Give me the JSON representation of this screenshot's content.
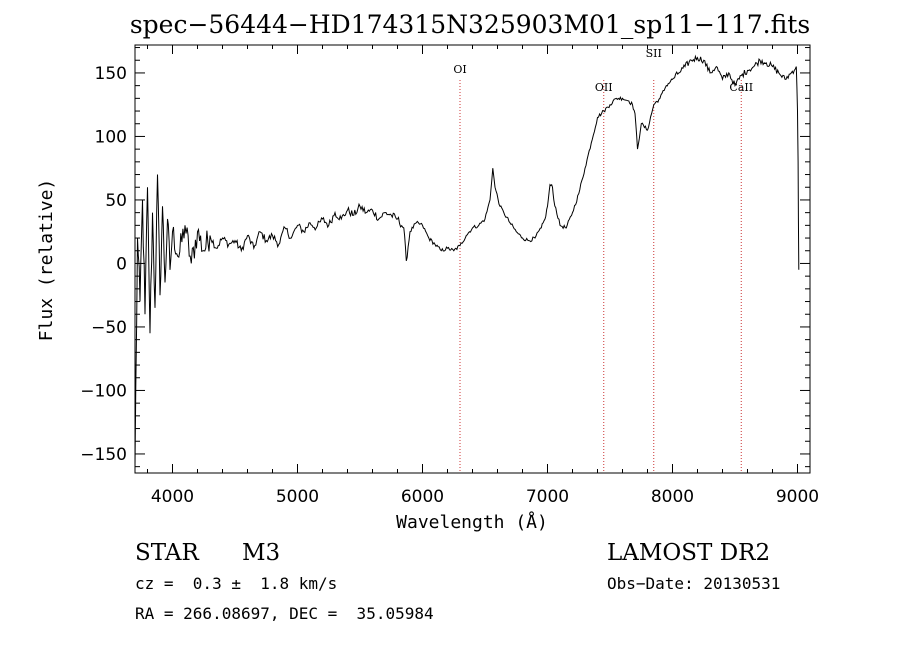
{
  "chart_data": {
    "type": "line",
    "title": "spec−56444−HD174315N325903M01_sp11−117.fits",
    "xlabel": "Wavelength (Å)",
    "ylabel": "Flux (relative)",
    "xlim": [
      3700,
      9100
    ],
    "ylim": [
      -165,
      172
    ],
    "x_ticks": [
      4000,
      5000,
      6000,
      7000,
      8000,
      9000
    ],
    "x_tick_labels": [
      "4000",
      "5000",
      "6000",
      "7000",
      "8000",
      "9000"
    ],
    "y_ticks": [
      -150,
      -100,
      -50,
      0,
      50,
      100,
      150
    ],
    "y_tick_labels": [
      "−150",
      "−100",
      "−50",
      "0",
      "50",
      "100",
      "150"
    ],
    "grid": false,
    "series": [
      {
        "color": "#000000",
        "x": [
          3700,
          3720,
          3740,
          3760,
          3780,
          3800,
          3820,
          3840,
          3860,
          3880,
          3900,
          3920,
          3940,
          3960,
          3980,
          4000,
          4050,
          4100,
          4150,
          4200,
          4250,
          4300,
          4350,
          4400,
          4450,
          4500,
          4550,
          4600,
          4650,
          4700,
          4750,
          4800,
          4850,
          4900,
          4950,
          5000,
          5050,
          5100,
          5150,
          5200,
          5250,
          5300,
          5350,
          5400,
          5450,
          5500,
          5550,
          5600,
          5650,
          5700,
          5750,
          5800,
          5850,
          5870,
          5900,
          5950,
          6000,
          6050,
          6100,
          6150,
          6200,
          6250,
          6300,
          6350,
          6400,
          6450,
          6500,
          6540,
          6562,
          6580,
          6620,
          6650,
          6700,
          6750,
          6800,
          6850,
          6900,
          6950,
          6980,
          7000,
          7020,
          7040,
          7050,
          7100,
          7150,
          7200,
          7250,
          7300,
          7350,
          7400,
          7450,
          7500,
          7550,
          7600,
          7650,
          7680,
          7700,
          7720,
          7750,
          7800,
          7850,
          7900,
          7950,
          8000,
          8050,
          8100,
          8150,
          8200,
          8250,
          8300,
          8350,
          8400,
          8450,
          8500,
          8550,
          8600,
          8650,
          8700,
          8750,
          8800,
          8850,
          8900,
          8950,
          8990,
          9000,
          9005,
          9010
        ],
        "values": [
          -160,
          20,
          -30,
          50,
          -40,
          60,
          -55,
          40,
          -35,
          70,
          -25,
          45,
          -15,
          35,
          -5,
          25,
          5,
          30,
          0,
          25,
          10,
          22,
          12,
          20,
          15,
          18,
          10,
          22,
          12,
          25,
          18,
          22,
          15,
          28,
          20,
          30,
          25,
          32,
          28,
          35,
          30,
          40,
          35,
          42,
          38,
          45,
          40,
          42,
          35,
          40,
          38,
          35,
          28,
          2,
          25,
          32,
          30,
          20,
          15,
          10,
          12,
          10,
          14,
          22,
          28,
          30,
          35,
          50,
          75,
          60,
          45,
          40,
          32,
          25,
          20,
          18,
          20,
          28,
          35,
          45,
          62,
          60,
          50,
          30,
          28,
          40,
          55,
          75,
          95,
          115,
          120,
          125,
          130,
          130,
          128,
          125,
          118,
          90,
          110,
          105,
          125,
          130,
          140,
          145,
          150,
          155,
          160,
          162,
          160,
          150,
          155,
          145,
          150,
          140,
          148,
          152,
          155,
          160,
          158,
          155,
          150,
          145,
          150,
          155,
          120,
          80,
          -5
        ]
      }
    ],
    "annotations": [
      {
        "label": "OI",
        "x": 6300
      },
      {
        "label": "OII",
        "x": 7450
      },
      {
        "label": "SII",
        "x": 7850
      },
      {
        "label": "CaII",
        "x": 8550
      }
    ]
  },
  "footer": {
    "object_class": "STAR",
    "subclass": "M3",
    "survey": "LAMOST DR2",
    "redshift": "cz =  0.3 ±  1.8 km/s",
    "obs_date": "Obs−Date: 20130531",
    "coords": "RA = 266.08697, DEC =  35.05984"
  },
  "colors": {
    "line": "#000000",
    "marker_line": "#cc3333",
    "background": "#ffffff"
  }
}
